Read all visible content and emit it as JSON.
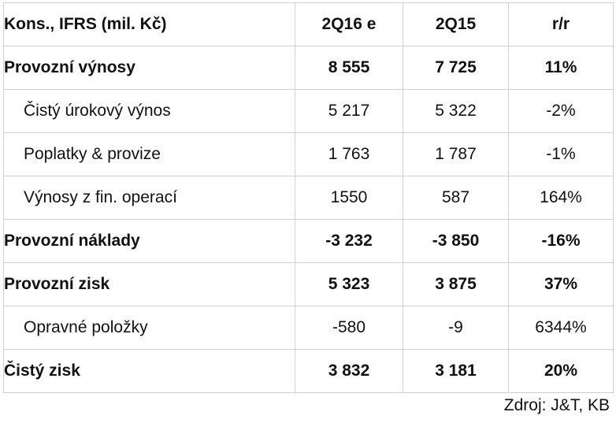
{
  "table": {
    "header": {
      "label": "Kons., IFRS (mil. Kč)",
      "col1": "2Q16 e",
      "col2": "2Q15",
      "col3": "r/r"
    },
    "rows": [
      {
        "label": "Provozní výnosy",
        "col1": "8 555",
        "col2": "7 725",
        "col3": "11%",
        "bold": true
      },
      {
        "label": "Čistý úrokový výnos",
        "col1": "5 217",
        "col2": "5 322",
        "col3": "-2%",
        "bold": false
      },
      {
        "label": "Poplatky & provize",
        "col1": "1 763",
        "col2": "1 787",
        "col3": "-1%",
        "bold": false
      },
      {
        "label": "Výnosy z fin. operací",
        "col1": "1550",
        "col2": "587",
        "col3": "164%",
        "bold": false
      },
      {
        "label": "Provozní náklady",
        "col1": "-3 232",
        "col2": "-3 850",
        "col3": "-16%",
        "bold": true
      },
      {
        "label": "Provozní zisk",
        "col1": "5 323",
        "col2": "3 875",
        "col3": "37%",
        "bold": true
      },
      {
        "label": "Opravné položky",
        "col1": "-580",
        "col2": "-9",
        "col3": "6344%",
        "bold": false
      },
      {
        "label": "Čistý zisk",
        "col1": "3 832",
        "col2": "3 181",
        "col3": "20%",
        "bold": true
      }
    ]
  },
  "source": "Zdroj: J&T, KB"
}
